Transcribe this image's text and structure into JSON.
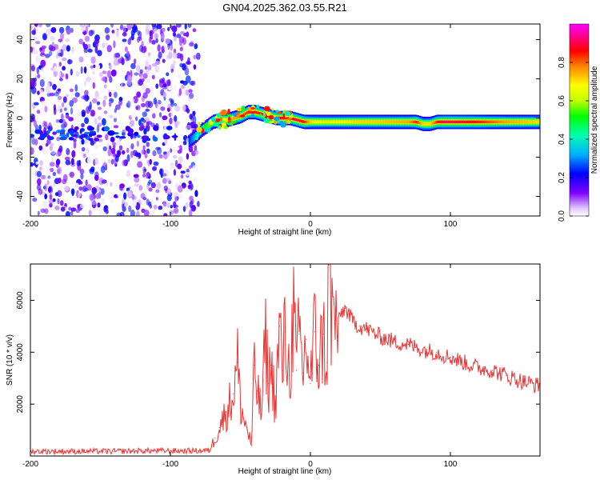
{
  "title": "GN04.2025.362.03.55.R21",
  "chart_data": [
    {
      "type": "heatmap",
      "name": "spectrogram",
      "xlabel": "Height of straight line (km)",
      "ylabel": "Frequency (Hz)",
      "xlim": [
        -200,
        164
      ],
      "ylim": [
        -50,
        48
      ],
      "xticks": [
        -200,
        -100,
        0,
        100
      ],
      "xtick_labels": [
        "-200",
        "-100",
        "0",
        "100"
      ],
      "yticks": [
        -40,
        -20,
        0,
        20,
        40
      ],
      "ytick_labels": [
        "-40",
        "-20",
        "0",
        "20",
        "40"
      ],
      "noise_region": {
        "x_range": [
          -200,
          -80
        ],
        "freq_range": [
          -50,
          48
        ],
        "amplitude_range": [
          0.0,
          0.25
        ]
      },
      "signal_track": {
        "x": [
          -87,
          -82,
          -78,
          -74,
          -70,
          -65,
          -60,
          -55,
          -50,
          -45,
          -40,
          -35,
          -30,
          -25,
          -20,
          -15,
          -10,
          -5,
          0,
          10,
          30,
          50,
          70,
          75,
          80,
          85,
          90,
          95,
          100,
          120,
          140,
          164
        ],
        "freq": [
          -12,
          -9,
          -6,
          -4,
          -2,
          -1,
          -1,
          0,
          1,
          3,
          3,
          2,
          1,
          0,
          0,
          0,
          -1,
          -2,
          -2,
          -2,
          -2,
          -2,
          -2,
          -2,
          -3,
          -3,
          -2,
          -2,
          -2,
          -2,
          -2,
          -2
        ],
        "amplitude": [
          0.25,
          0.35,
          0.45,
          0.55,
          0.6,
          0.65,
          0.7,
          0.75,
          0.8,
          0.85,
          0.85,
          0.85,
          0.9,
          0.9,
          0.85,
          0.85,
          0.9,
          0.85,
          0.7,
          0.65,
          0.7,
          0.72,
          0.75,
          0.85,
          0.7,
          0.7,
          0.85,
          0.9,
          0.9,
          0.85,
          0.75,
          0.7
        ]
      },
      "colorbar": {
        "label": "Normalized spectral amplitude",
        "range": [
          0.0,
          1.0
        ],
        "ticks": [
          0.0,
          0.2,
          0.4,
          0.6,
          0.8
        ],
        "tick_labels": [
          "0.0",
          "0.2",
          "0.4",
          "0.6",
          "0.8"
        ],
        "colors": [
          "#ffffff",
          "#e0c8ff",
          "#8000ff",
          "#0000ff",
          "#00b0ff",
          "#00ffb0",
          "#00ff00",
          "#c0ff00",
          "#ffff00",
          "#ff8000",
          "#ff0000",
          "#ff0080",
          "#ff00ff"
        ]
      }
    },
    {
      "type": "line",
      "name": "snr",
      "xlabel": "Height of straight line (km)",
      "ylabel": "SNR (10 * v/v)",
      "xlim": [
        -200,
        164
      ],
      "ylim": [
        0,
        7400
      ],
      "xticks": [
        -200,
        -100,
        0,
        100
      ],
      "xtick_labels": [
        "-200",
        "-100",
        "0",
        "100"
      ],
      "yticks": [
        2000,
        4000,
        6000
      ],
      "ytick_labels": [
        "2000",
        "4000",
        "6000"
      ],
      "color": "#ee3333",
      "x": [
        -200,
        -180,
        -160,
        -140,
        -120,
        -100,
        -80,
        -72,
        -68,
        -65,
        -60,
        -55,
        -52,
        -50,
        -48,
        -45,
        -42,
        -40,
        -38,
        -35,
        -32,
        -30,
        -28,
        -25,
        -22,
        -20,
        -18,
        -15,
        -12,
        -10,
        -8,
        -5,
        -3,
        0,
        3,
        6,
        9,
        12,
        13,
        15,
        18,
        20,
        22,
        25,
        30,
        35,
        40,
        50,
        60,
        70,
        80,
        90,
        100,
        110,
        120,
        130,
        140,
        150,
        164
      ],
      "y": [
        180,
        180,
        180,
        180,
        200,
        200,
        200,
        220,
        700,
        1100,
        1700,
        2400,
        3600,
        2000,
        1500,
        1000,
        400,
        3500,
        2500,
        1600,
        4500,
        2800,
        3500,
        1900,
        5000,
        3300,
        4800,
        3100,
        5500,
        3300,
        4700,
        3200,
        4500,
        2800,
        4800,
        3500,
        4700,
        3600,
        7350,
        5400,
        5300,
        5100,
        5500,
        5700,
        5200,
        5000,
        4900,
        4600,
        4400,
        4300,
        4100,
        4000,
        3800,
        3600,
        3400,
        3300,
        3100,
        2900,
        2700
      ]
    }
  ]
}
